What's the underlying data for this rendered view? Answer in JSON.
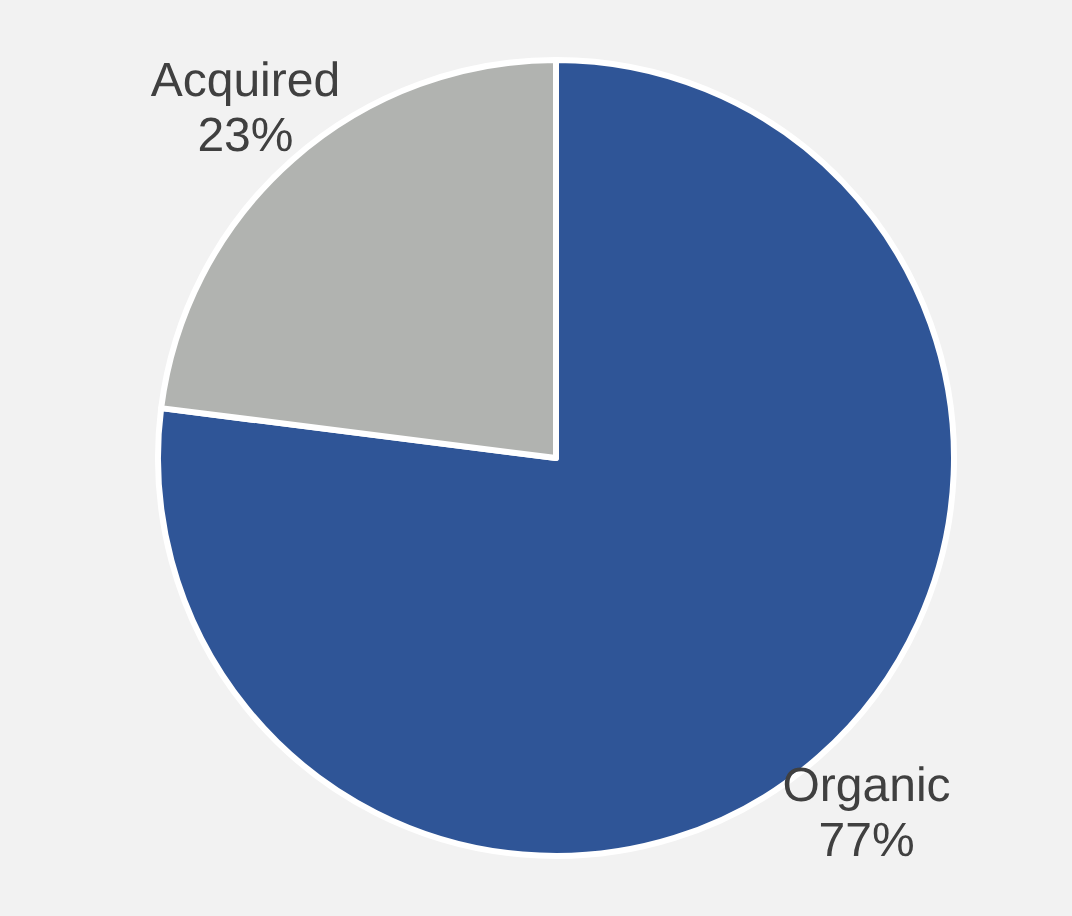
{
  "chart_data": {
    "type": "pie",
    "categories": [
      "Organic",
      "Acquired"
    ],
    "values": [
      77,
      23
    ],
    "value_labels": [
      "77%",
      "23%"
    ],
    "colors": [
      "#2f5597",
      "#b1b3b0"
    ]
  }
}
